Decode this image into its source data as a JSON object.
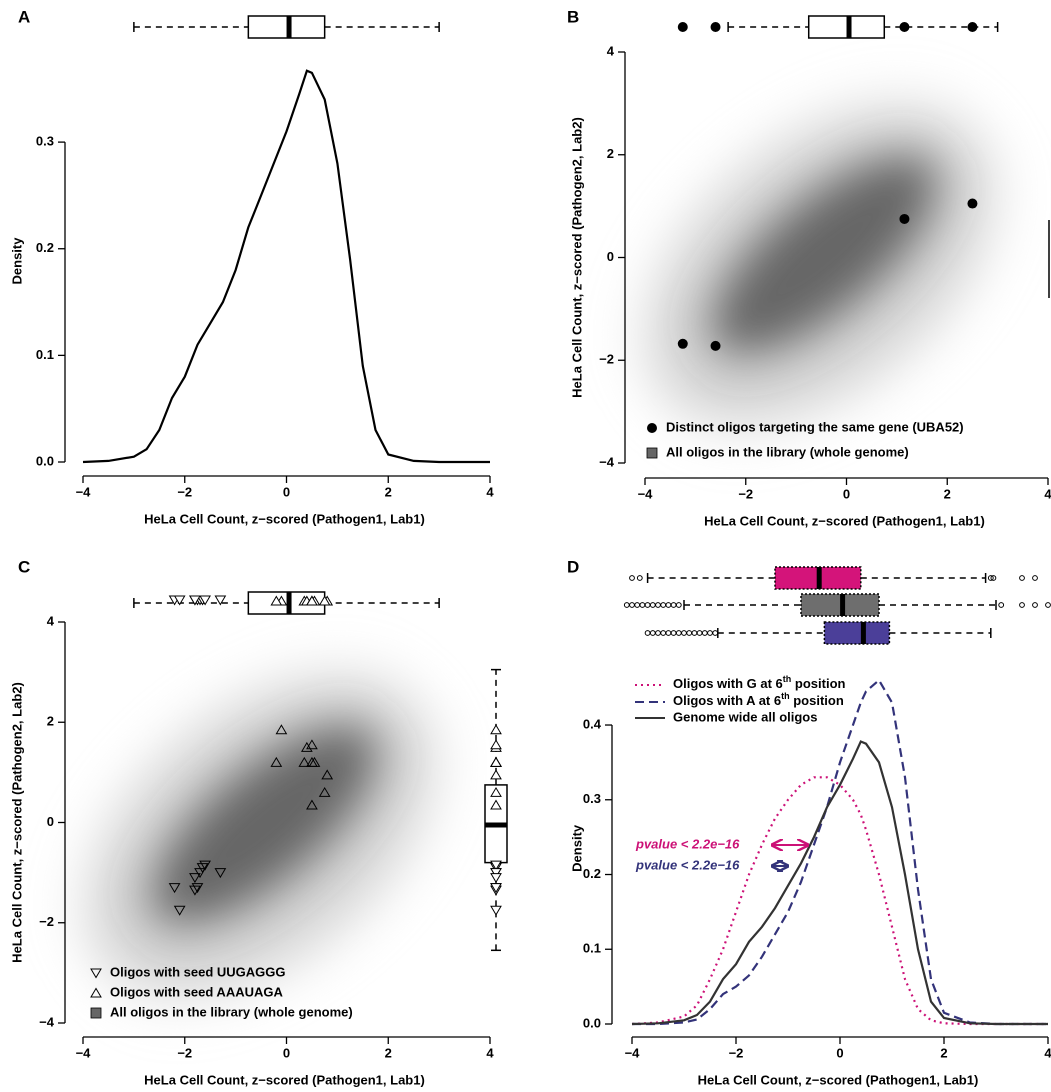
{
  "chart_data": [
    {
      "type": "density",
      "panel": "A",
      "xlabel": "HeLa Cell Count, z−scored (Pathogen1, Lab1)",
      "ylabel": "Density",
      "xlim": [
        -4,
        4
      ],
      "ylim": [
        0,
        0.377
      ],
      "xticks": [
        {
          "value": -4,
          "label": "−4"
        },
        {
          "value": -2,
          "label": "−2"
        },
        0,
        2,
        4
      ],
      "yticks": [
        {
          "value": 0,
          "label": "0.0"
        },
        0.1,
        0.2,
        0.3
      ],
      "series": [
        {
          "color": "#000000",
          "style": "solid",
          "x": [
            -4,
            -3.5,
            -3,
            -2.75,
            -2.5,
            -2.25,
            -2,
            -1.75,
            -1.5,
            -1.25,
            -1,
            -0.75,
            -0.5,
            -0.25,
            0,
            0.25,
            0.4,
            0.5,
            0.75,
            1,
            1.25,
            1.5,
            1.75,
            2,
            2.5,
            3,
            4
          ],
          "values": [
            0,
            0.001,
            0.005,
            0.012,
            0.03,
            0.06,
            0.08,
            0.11,
            0.13,
            0.15,
            0.18,
            0.22,
            0.25,
            0.28,
            0.31,
            0.345,
            0.367,
            0.365,
            0.34,
            0.28,
            0.19,
            0.09,
            0.03,
            0.007,
            0.001,
            0,
            0
          ]
        }
      ],
      "boxplots": [
        {
          "whisker_low": -3,
          "q1": -0.75,
          "median": 0.05,
          "q3": 0.75,
          "whisker_high": 3,
          "color": "#ffffff",
          "outliers": []
        }
      ]
    },
    {
      "type": "scatter",
      "panel": "B",
      "xlabel": "HeLa Cell Count, z−scored (Pathogen1, Lab1)",
      "ylabel": "HeLa Cell Count, z−scored (Pathogen2, Lab2)",
      "xlim": [
        -4,
        4
      ],
      "ylim": [
        -4,
        4
      ],
      "xticks": [
        {
          "value": -4,
          "label": "−4"
        },
        {
          "value": -2,
          "label": "−2"
        },
        0,
        2,
        4
      ],
      "yticks": [
        {
          "value": -4,
          "label": "−4"
        },
        {
          "value": -2,
          "label": "−2"
        },
        0,
        2,
        4
      ],
      "background": {
        "name": "All oligos in the library (whole genome)",
        "color": "#666666"
      },
      "series": [
        {
          "name": "Distinct oligos targeting the same gene (UBA52)",
          "marker": "circle",
          "color": "#000000",
          "x": [
            -3.25,
            -2.6,
            1.15,
            2.5
          ],
          "values": [
            -1.68,
            -1.72,
            0.75,
            1.05
          ]
        }
      ],
      "boxplots": [
        {
          "whisker_low": -2.35,
          "q1": -0.75,
          "median": 0.05,
          "q3": 0.75,
          "whisker_high": 3,
          "color": "#ffffff",
          "outliers": []
        }
      ]
    },
    {
      "type": "scatter",
      "panel": "C",
      "xlabel": "HeLa Cell Count, z−scored (Pathogen1, Lab1)",
      "ylabel": "HeLa Cell Count, z−scored (Pathogen2, Lab2)",
      "xlim": [
        -4,
        4
      ],
      "ylim": [
        -4,
        4
      ],
      "xticks": [
        {
          "value": -4,
          "label": "−4"
        },
        {
          "value": -2,
          "label": "−2"
        },
        0,
        2,
        4
      ],
      "yticks": [
        {
          "value": -4,
          "label": "−4"
        },
        {
          "value": -2,
          "label": "−2"
        },
        0,
        2,
        4
      ],
      "background": {
        "name": "All oligos in the library (whole genome)",
        "color": "#666666"
      },
      "series": [
        {
          "name": "Oligos with seed UUGAGGG",
          "marker": "triangle-down",
          "color": "#000000",
          "x": [
            -2.2,
            -2.1,
            -1.8,
            -1.75,
            -1.7,
            -1.65,
            -1.6,
            -1.3,
            -1.8
          ],
          "values": [
            -1.3,
            -1.75,
            -1.35,
            -1.3,
            -1.0,
            -0.9,
            -0.85,
            -1.0,
            -1.1
          ]
        },
        {
          "name": "Oligos with seed AAAUAGA",
          "marker": "triangle-up",
          "color": "#000000",
          "x": [
            -0.1,
            -0.2,
            0.35,
            0.4,
            0.5,
            0.5,
            0.55,
            0.8,
            0.75,
            0.5
          ],
          "values": [
            1.85,
            1.2,
            1.2,
            1.5,
            1.55,
            1.2,
            1.2,
            0.95,
            0.6,
            0.35
          ]
        }
      ],
      "boxplots": [
        {
          "whisker_low": -3,
          "q1": -0.75,
          "median": 0.05,
          "q3": 0.75,
          "whisker_high": 3,
          "color": "#ffffff",
          "outliers": []
        },
        {
          "whisker_low": -2.55,
          "q1": -0.8,
          "median": -0.05,
          "q3": 0.75,
          "whisker_high": 3.05,
          "color": "#ffffff",
          "outliers": []
        }
      ]
    },
    {
      "type": "density",
      "panel": "D",
      "xlabel": "HeLa Cell Count, z−scored (Pathogen1, Lab1)",
      "ylabel": "Density",
      "xlim": [
        -4,
        4
      ],
      "ylim": [
        0,
        0.47
      ],
      "xticks": [
        {
          "value": -4,
          "label": "−4"
        },
        {
          "value": -2,
          "label": "−2"
        },
        0,
        2,
        4
      ],
      "yticks": [
        {
          "value": 0,
          "label": "0.0"
        },
        0.1,
        0.2,
        0.3,
        0.4
      ],
      "series": [
        {
          "name": "Oligos with G at 6th position",
          "color": "#cc1177",
          "style": "dotted",
          "x": [
            -4,
            -3.5,
            -3,
            -2.75,
            -2.5,
            -2.25,
            -2,
            -1.75,
            -1.5,
            -1.25,
            -1,
            -0.75,
            -0.5,
            -0.25,
            0,
            0.25,
            0.4,
            0.5,
            0.75,
            1,
            1.25,
            1.5,
            1.75,
            2,
            2.5,
            3,
            4
          ],
          "values": [
            0,
            0.002,
            0.01,
            0.025,
            0.06,
            0.1,
            0.15,
            0.2,
            0.24,
            0.275,
            0.3,
            0.32,
            0.33,
            0.33,
            0.32,
            0.3,
            0.28,
            0.26,
            0.2,
            0.13,
            0.06,
            0.02,
            0.005,
            0.001,
            0,
            0,
            0
          ]
        },
        {
          "name": "Oligos with A at 6th position",
          "color": "#33337a",
          "style": "dashed",
          "x": [
            -4,
            -3.5,
            -3,
            -2.75,
            -2.5,
            -2.25,
            -2,
            -1.75,
            -1.5,
            -1.25,
            -1,
            -0.75,
            -0.5,
            -0.25,
            0,
            0.25,
            0.4,
            0.5,
            0.75,
            1,
            1.25,
            1.5,
            1.75,
            2,
            2.5,
            3,
            4
          ],
          "values": [
            0,
            0,
            0.002,
            0.006,
            0.02,
            0.04,
            0.05,
            0.065,
            0.09,
            0.12,
            0.15,
            0.19,
            0.24,
            0.29,
            0.35,
            0.4,
            0.43,
            0.445,
            0.46,
            0.43,
            0.33,
            0.18,
            0.06,
            0.015,
            0.002,
            0,
            0
          ]
        },
        {
          "name": "Genome wide all oligos",
          "color": "#333333",
          "style": "solid",
          "x": [
            -4,
            -3.5,
            -3,
            -2.75,
            -2.5,
            -2.25,
            -2,
            -1.75,
            -1.5,
            -1.25,
            -1,
            -0.75,
            -0.5,
            -0.25,
            0,
            0.25,
            0.4,
            0.5,
            0.75,
            1,
            1.25,
            1.5,
            1.75,
            2,
            2.5,
            3,
            4
          ],
          "values": [
            0,
            0.001,
            0.005,
            0.012,
            0.03,
            0.06,
            0.08,
            0.11,
            0.13,
            0.155,
            0.185,
            0.215,
            0.25,
            0.29,
            0.32,
            0.355,
            0.378,
            0.375,
            0.35,
            0.29,
            0.2,
            0.1,
            0.03,
            0.008,
            0.001,
            0,
            0
          ]
        }
      ],
      "boxplots": [
        {
          "whisker_low": -3.7,
          "q1": -1.25,
          "median": -0.4,
          "q3": 0.4,
          "whisker_high": 2.8,
          "color": "#d4147a",
          "outliers": [
            -4.0,
            -3.85,
            2.9,
            2.95,
            3.5,
            3.75
          ]
        },
        {
          "whisker_low": -3.0,
          "q1": -0.75,
          "median": 0.05,
          "q3": 0.75,
          "whisker_high": 3.0,
          "color": "#6e6e6e",
          "outliers": [
            -4.1,
            -4.0,
            -3.9,
            -3.8,
            -3.7,
            -3.6,
            -3.5,
            -3.4,
            -3.3,
            -3.2,
            -3.1,
            3.1,
            3.5,
            3.75,
            4.0
          ]
        },
        {
          "whisker_low": -2.35,
          "q1": -0.3,
          "median": 0.45,
          "q3": 0.95,
          "whisker_high": 2.9,
          "color": "#4b3f99",
          "outliers": [
            -3.7,
            -3.6,
            -3.5,
            -3.4,
            -3.3,
            -3.2,
            -3.1,
            -3.0,
            -2.9,
            -2.8,
            -2.7,
            -2.6,
            -2.5,
            -2.4
          ]
        }
      ],
      "annotations": [
        {
          "text": "pvalue < 2.2e−16",
          "color": "#cc1177"
        },
        {
          "text": "pvalue < 2.2e−16",
          "color": "#33337a"
        }
      ]
    }
  ]
}
